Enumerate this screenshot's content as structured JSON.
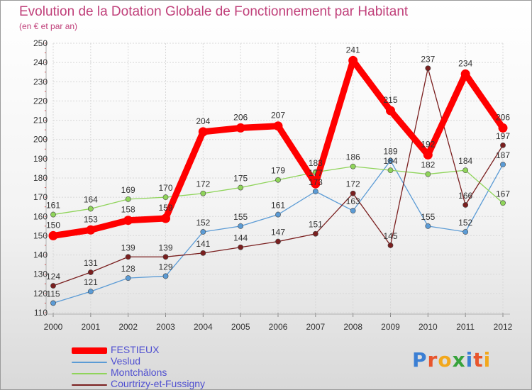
{
  "title": "Evolution de la Dotation Globale de Fonctionnement par Habitant",
  "subtitle": "(en € et par an)",
  "logo": {
    "text": "Proxiti",
    "letter_colors": [
      "#3b7fd4",
      "#e8552d",
      "#f2a81d",
      "#37a33b",
      "#3b7fd4",
      "#e8552d",
      "#f2a81d"
    ]
  },
  "chart_data": {
    "type": "line",
    "title": "Evolution de la Dotation Globale de Fonctionnement par Habitant",
    "subtitle": "(en € et par an)",
    "xlabel": "",
    "ylabel": "",
    "categories": [
      "2000",
      "2001",
      "2002",
      "2003",
      "2004",
      "2005",
      "2006",
      "2007",
      "2008",
      "2009",
      "2010",
      "2011",
      "2012"
    ],
    "yticks": [
      110,
      120,
      130,
      140,
      150,
      160,
      170,
      180,
      190,
      200,
      210,
      220,
      230,
      240,
      250
    ],
    "ylim": [
      110,
      250
    ],
    "grid": true,
    "legend_position": "bottom-left",
    "series": [
      {
        "name": "FESTIEUX",
        "color": "#ff0000",
        "emphasis": true,
        "values": [
          150,
          153,
          158,
          159,
          204,
          206,
          207,
          177,
          241,
          215,
          192,
          234,
          206
        ],
        "labels": [
          "150",
          "153",
          "158",
          "159",
          "204",
          "206",
          "207",
          "177",
          "241",
          "215",
          "192",
          "234",
          "206"
        ]
      },
      {
        "name": "Veslud",
        "color": "#5b9bd5",
        "emphasis": false,
        "values": [
          115,
          121,
          128,
          129,
          152,
          155,
          161,
          173,
          163,
          189,
          155,
          152,
          187
        ],
        "labels": [
          "115",
          "121",
          "128",
          "129",
          "152",
          "155",
          "161",
          "173",
          "163",
          "189",
          "155",
          "152",
          "187"
        ]
      },
      {
        "name": "Montchâlons",
        "color": "#8fd45a",
        "emphasis": false,
        "values": [
          161,
          164,
          169,
          170,
          172,
          175,
          179,
          183,
          186,
          184,
          182,
          184,
          167
        ],
        "labels": [
          "161",
          "164",
          "169",
          "170",
          "172",
          "175",
          "179",
          "183",
          "186",
          "184",
          "182",
          "184",
          "167"
        ]
      },
      {
        "name": "Courtrizy-et-Fussigny",
        "color": "#7a1f1f",
        "emphasis": false,
        "values": [
          124,
          131,
          139,
          139,
          141,
          144,
          147,
          151,
          172,
          145,
          237,
          166,
          197
        ],
        "labels": [
          "124",
          "131",
          "139",
          "139",
          "141",
          "144",
          "147",
          "151",
          "172",
          "145",
          "237",
          "166",
          "197"
        ]
      }
    ]
  }
}
